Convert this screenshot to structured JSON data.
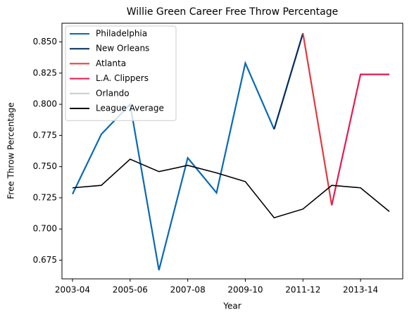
{
  "chart_data": {
    "type": "line",
    "title": "Willie Green Career Free Throw Percentage",
    "x_label": "Year",
    "y_label": "Free Throw Percentage",
    "categories": [
      "2003-04",
      null,
      "2005-06",
      null,
      "2007-08",
      null,
      "2009-10",
      null,
      "2011-12",
      null,
      "2013-14",
      null
    ],
    "series": [
      {
        "name": "Philadelphia",
        "color": "#0869b5",
        "values": [
          0.728,
          0.776,
          0.8,
          0.667,
          0.757,
          0.729,
          0.833,
          0.78,
          null,
          null,
          null,
          null
        ]
      },
      {
        "name": "New Orleans",
        "color": "#002b5c",
        "values": [
          null,
          null,
          null,
          null,
          null,
          null,
          null,
          0.78,
          0.857,
          null,
          null,
          null
        ]
      },
      {
        "name": "Atlanta",
        "color": "#e03a3e",
        "values": [
          null,
          null,
          null,
          null,
          null,
          null,
          null,
          null,
          0.857,
          0.719,
          null,
          null
        ]
      },
      {
        "name": "Orlando",
        "color": "#c4ced4",
        "values": [
          null,
          null,
          null,
          null,
          null,
          null,
          null,
          null,
          null,
          null,
          0.824,
          0.824
        ]
      },
      {
        "name": "L.A. Clippers",
        "color": "#e31b52",
        "values": [
          null,
          null,
          null,
          null,
          null,
          null,
          null,
          null,
          null,
          0.719,
          0.824,
          0.824
        ]
      },
      {
        "name": "League Average",
        "color": "#000000",
        "values": [
          0.733,
          0.735,
          0.756,
          0.746,
          0.751,
          0.745,
          0.738,
          0.709,
          0.716,
          0.735,
          0.733,
          0.714
        ]
      }
    ],
    "legend_order": [
      0,
      1,
      2,
      4,
      3,
      5
    ],
    "legend": "upper left",
    "ylim": [
      0.66,
      0.865
    ],
    "yticks": [
      0.675,
      {
        "value": 0.7,
        "label": "0.700"
      },
      0.725,
      {
        "value": 0.75,
        "label": "0.750"
      },
      0.775,
      {
        "value": 0.8,
        "label": "0.800"
      },
      0.825,
      {
        "value": 0.85,
        "label": "0.850"
      }
    ],
    "grid": false
  }
}
